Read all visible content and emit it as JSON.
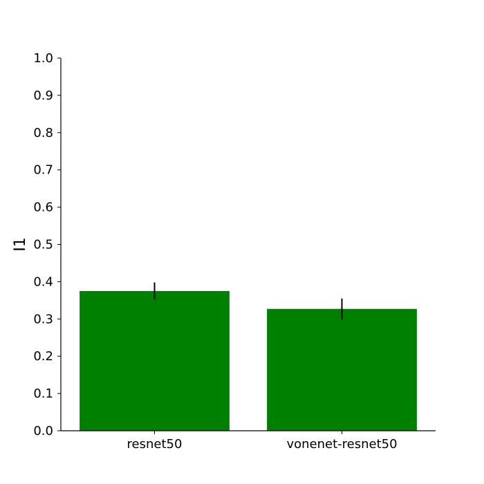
{
  "chart_data": {
    "type": "bar",
    "title": "",
    "xlabel": "",
    "ylabel": "I1",
    "categories": [
      "resnet50",
      "vonenet-resnet50"
    ],
    "values": [
      0.375,
      0.327
    ],
    "error": [
      0.023,
      0.028
    ],
    "ylim": [
      0,
      1
    ],
    "yticks": [
      "0.0",
      "0.1",
      "0.2",
      "0.3",
      "0.4",
      "0.5",
      "0.6",
      "0.7",
      "0.8",
      "0.9",
      "1.0"
    ],
    "grid": false,
    "legend": "none",
    "bar_color": "#008000",
    "error_color": "#000000"
  }
}
